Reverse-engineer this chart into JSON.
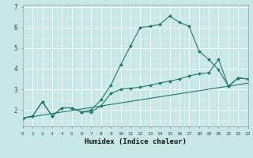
{
  "xlabel": "Humidex (Indice chaleur)",
  "bg_color": "#c8e8e8",
  "grid_major_color": "#ffffff",
  "grid_minor_color": "#ddf0f0",
  "line_color": "#1a7a6e",
  "xlim": [
    0,
    23
  ],
  "ylim": [
    1.2,
    7.1
  ],
  "xticks": [
    0,
    1,
    2,
    3,
    4,
    5,
    6,
    7,
    8,
    9,
    10,
    11,
    12,
    13,
    14,
    15,
    16,
    17,
    18,
    19,
    20,
    21,
    22,
    23
  ],
  "yticks": [
    2,
    3,
    4,
    5,
    6,
    7
  ],
  "line1_x": [
    0,
    1,
    2,
    3,
    4,
    5,
    6,
    7,
    8,
    9,
    10,
    11,
    12,
    13,
    14,
    15,
    16,
    17,
    18,
    19,
    20,
    21,
    22,
    23
  ],
  "line1_y": [
    1.6,
    1.7,
    2.4,
    1.7,
    2.1,
    2.1,
    1.9,
    2.0,
    2.5,
    3.2,
    4.2,
    5.1,
    6.0,
    6.05,
    6.15,
    6.55,
    6.25,
    6.05,
    4.85,
    4.45,
    3.95,
    3.15,
    3.55,
    3.5
  ],
  "line2_x": [
    0,
    1,
    2,
    3,
    4,
    5,
    6,
    7,
    8,
    9,
    10,
    11,
    12,
    13,
    14,
    15,
    16,
    17,
    18,
    19,
    20,
    21,
    22,
    23
  ],
  "line2_y": [
    1.6,
    1.7,
    2.4,
    1.7,
    2.1,
    2.1,
    1.9,
    1.9,
    2.2,
    2.8,
    3.0,
    3.05,
    3.1,
    3.2,
    3.3,
    3.4,
    3.5,
    3.65,
    3.75,
    3.8,
    4.45,
    3.15,
    3.55,
    3.5
  ],
  "line3_x": [
    0,
    23
  ],
  "line3_y": [
    1.6,
    3.3
  ]
}
